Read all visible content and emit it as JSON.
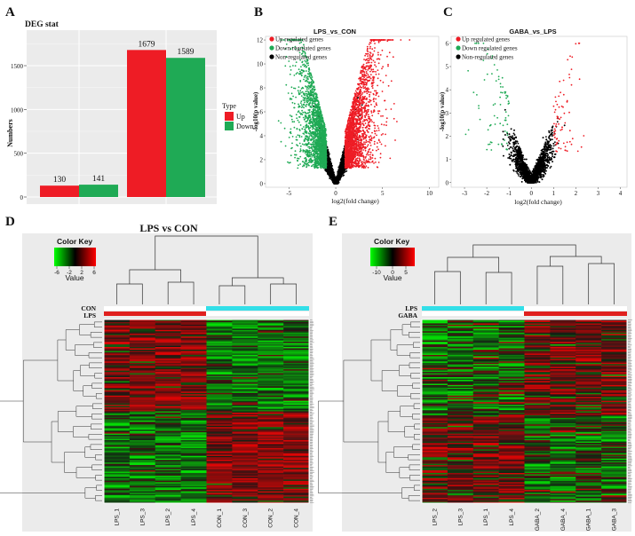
{
  "panel_labels": [
    "A",
    "B",
    "C",
    "D",
    "E"
  ],
  "colors": {
    "up": "#ee1c25",
    "down": "#1faa55",
    "non": "#000000",
    "teal": "#33dfe8",
    "red": "#e0201e",
    "panel_bg": "#ebebeb"
  },
  "chart_data": [
    {
      "id": "A",
      "type": "bar",
      "title": "DEG stat",
      "ylabel": "Numbers",
      "xlabel": "",
      "ylim": [
        0,
        1800
      ],
      "yticks": [
        0,
        500,
        1000,
        1500
      ],
      "groups": 2,
      "series": [
        {
          "name": "Up",
          "values": [
            130,
            1679
          ]
        },
        {
          "name": "Down",
          "values": [
            141,
            1589
          ]
        }
      ],
      "legend": {
        "title": "Type",
        "position": "right",
        "items": [
          "Up",
          "Down"
        ]
      },
      "data_labels": [
        "130",
        "141",
        "1679",
        "1589"
      ]
    },
    {
      "id": "B",
      "type": "scatter",
      "title": "LPS_vs_CON",
      "xlabel": "log2(fold change)",
      "ylabel": "-log10(p value)",
      "xlim": [
        -7.5,
        11
      ],
      "ylim": [
        -0.3,
        12.3
      ],
      "xticks": [
        -5,
        0,
        5,
        10
      ],
      "yticks": [
        0,
        2,
        4,
        6,
        8,
        10,
        12
      ],
      "legend": {
        "position": "top-left",
        "items": [
          "Up regulated genes",
          "Down regulated genes",
          "Non-regulated genes"
        ]
      }
    },
    {
      "id": "C",
      "type": "scatter",
      "title": "GABA_vs_LPS",
      "xlabel": "log2(fold change)",
      "ylabel": "-log10(p value)",
      "xlim": [
        -3.6,
        4.3
      ],
      "ylim": [
        -0.2,
        6.3
      ],
      "xticks": [
        -3,
        -2,
        -1,
        0,
        1,
        2,
        3,
        4
      ],
      "yticks": [
        0,
        1,
        2,
        3,
        4,
        5,
        6
      ],
      "legend": {
        "position": "top-left",
        "items": [
          "Up regulated genes",
          "Down regulated genes",
          "Non-regulated genes"
        ]
      }
    },
    {
      "id": "D",
      "type": "heatmap",
      "title": "LPS vs CON",
      "color_key": {
        "title": "Color Key",
        "label": "Value",
        "ticks": [
          "-6",
          "-2",
          "2",
          "6"
        ]
      },
      "group_labels": [
        "CON",
        "LPS"
      ],
      "columns": [
        "LPS_1",
        "LPS_3",
        "LPS_2",
        "LPS_4",
        "CON_1",
        "CON_3",
        "CON_2",
        "CON_4"
      ]
    },
    {
      "id": "E",
      "type": "heatmap",
      "title": "",
      "color_key": {
        "title": "Color Key",
        "label": "Value",
        "ticks": [
          "-10",
          "0",
          "5"
        ]
      },
      "group_labels": [
        "LPS",
        "GABA"
      ],
      "columns": [
        "LPS_2",
        "LPS_3",
        "LPS_1",
        "LPS_4",
        "GABA_2",
        "GABA_4",
        "GABA_1",
        "GABA_3"
      ]
    }
  ]
}
